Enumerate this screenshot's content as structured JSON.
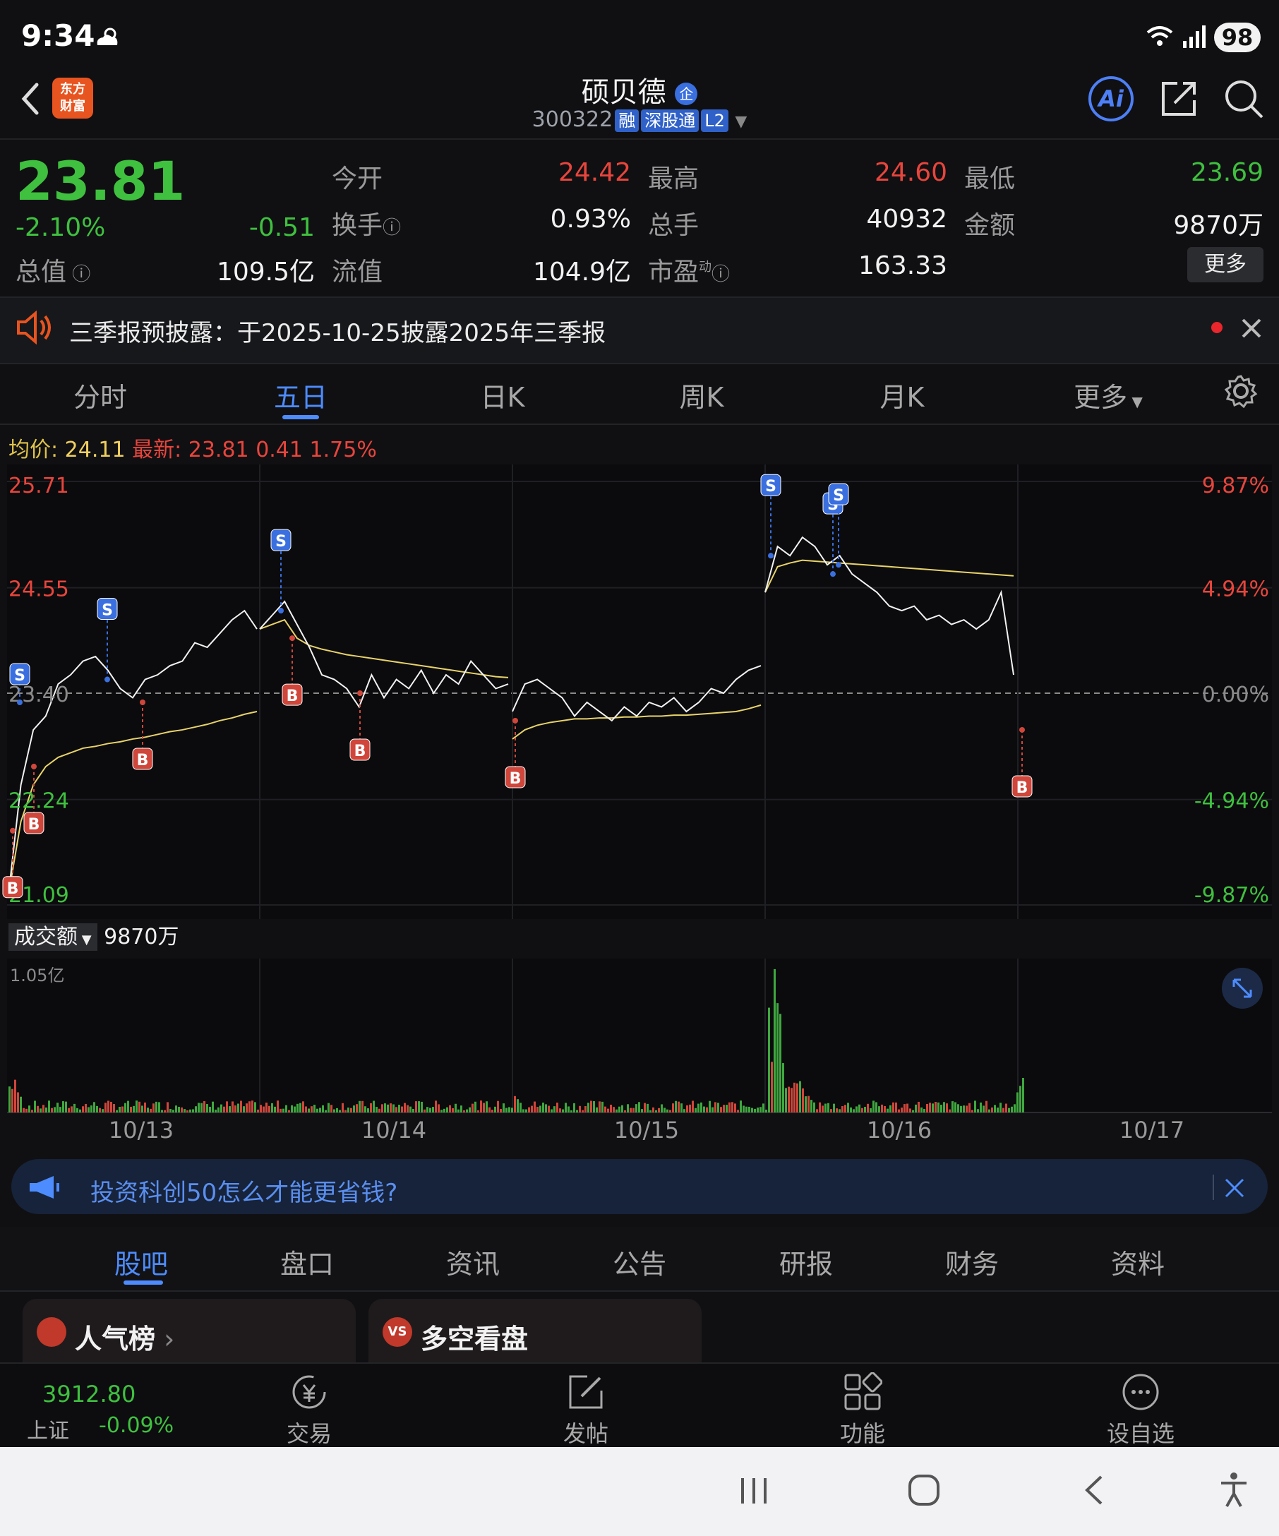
{
  "status_bar": {
    "time": "9:34",
    "battery": "98"
  },
  "header": {
    "title": "硕贝德",
    "title_badge": "企",
    "code": "300322",
    "tags": [
      "融",
      "深股通",
      "L2"
    ],
    "ai_label": "Ai",
    "logo_text": "东方财富"
  },
  "quote": {
    "price": "23.81",
    "change_pct": "-2.10%",
    "change": "-0.51",
    "open_label": "今开",
    "open": "24.42",
    "high_label": "最高",
    "high": "24.60",
    "low_label": "最低",
    "low": "23.69",
    "turnover_label": "换手",
    "turnover": "0.93%",
    "volume_label": "总手",
    "volume": "40932",
    "amount_label": "金额",
    "amount": "9870万",
    "mcap_label": "总值",
    "mcap": "109.5亿",
    "float_label": "流值",
    "float": "104.9亿",
    "pe_label": "市盈",
    "pe_sup": "动",
    "pe": "163.33",
    "more_label": "更多"
  },
  "notice": {
    "text": "三季报预披露：于2025-10-25披露2025年三季报"
  },
  "tabs": [
    "分时",
    "五日",
    "日K",
    "周K",
    "月K",
    "更多"
  ],
  "chart_header": {
    "avg_label": "均价:",
    "avg": "24.11",
    "latest_label": "最新:",
    "latest": "23.81",
    "diff": "0.41",
    "diff_pct": "1.75%"
  },
  "chart_data": {
    "type": "line",
    "x_labels": [
      "10/13",
      "10/14",
      "10/15",
      "10/16",
      "10/17"
    ],
    "y_left_ticks": [
      "25.71",
      "24.55",
      "23.40",
      "22.24",
      "21.09"
    ],
    "y_right_ticks": [
      "9.87%",
      "4.94%",
      "0.00%",
      "-4.94%",
      "-9.87%"
    ],
    "ylim": [
      21.09,
      25.71
    ],
    "prev_close": 23.4,
    "series": [
      {
        "day": "10/13",
        "price": [
          21.2,
          22.4,
          23.0,
          23.15,
          23.5,
          23.6,
          23.75,
          23.8,
          23.65,
          23.45,
          23.35,
          23.55,
          23.6,
          23.7,
          23.75,
          23.95,
          23.9,
          24.05,
          24.2,
          24.3,
          24.1
        ],
        "avg": [
          21.2,
          22.0,
          22.4,
          22.6,
          22.7,
          22.75,
          22.8,
          22.82,
          22.85,
          22.87,
          22.9,
          22.92,
          22.95,
          22.98,
          23.0,
          23.03,
          23.06,
          23.1,
          23.13,
          23.17,
          23.2
        ]
      },
      {
        "day": "10/14",
        "price": [
          24.1,
          24.25,
          24.4,
          24.15,
          23.9,
          23.6,
          23.55,
          23.45,
          23.25,
          23.6,
          23.35,
          23.55,
          23.45,
          23.65,
          23.4,
          23.6,
          23.5,
          23.75,
          23.6,
          23.45,
          23.5
        ],
        "avg": [
          24.1,
          24.15,
          24.2,
          24.0,
          23.92,
          23.88,
          23.85,
          23.82,
          23.8,
          23.78,
          23.76,
          23.74,
          23.72,
          23.7,
          23.68,
          23.66,
          23.64,
          23.62,
          23.6,
          23.58,
          23.57
        ]
      },
      {
        "day": "10/15",
        "price": [
          23.2,
          23.5,
          23.55,
          23.45,
          23.35,
          23.15,
          23.3,
          23.2,
          23.1,
          23.25,
          23.15,
          23.3,
          23.25,
          23.35,
          23.2,
          23.3,
          23.45,
          23.4,
          23.55,
          23.65,
          23.7
        ],
        "avg": [
          22.9,
          23.0,
          23.05,
          23.08,
          23.1,
          23.12,
          23.12,
          23.13,
          23.13,
          23.14,
          23.14,
          23.15,
          23.15,
          23.16,
          23.16,
          23.17,
          23.18,
          23.19,
          23.2,
          23.23,
          23.27
        ]
      },
      {
        "day": "10/16",
        "price": [
          24.5,
          25.0,
          24.9,
          25.1,
          25.0,
          24.8,
          24.9,
          24.7,
          24.6,
          24.5,
          24.35,
          24.3,
          24.35,
          24.2,
          24.25,
          24.15,
          24.2,
          24.1,
          24.2,
          24.5,
          23.6
        ],
        "avg": [
          24.5,
          24.78,
          24.82,
          24.85,
          24.84,
          24.83,
          24.82,
          24.81,
          24.8,
          24.79,
          24.78,
          24.77,
          24.76,
          24.75,
          24.74,
          24.73,
          24.72,
          24.71,
          24.7,
          24.69,
          24.68
        ]
      }
    ],
    "buy_sell_marks": [
      "S",
      "S",
      "S",
      "S",
      "S",
      "S",
      "B",
      "B",
      "B",
      "B",
      "B",
      "B",
      "B"
    ]
  },
  "volume": {
    "label": "成交额",
    "value": "9870万",
    "max_label": "1.05亿"
  },
  "ad": {
    "text": "投资科创50怎么才能更省钱?"
  },
  "bottom_tabs": [
    "股吧",
    "盘口",
    "资讯",
    "公告",
    "研报",
    "财务",
    "资料"
  ],
  "cards": {
    "popular": "人气榜",
    "bull_bear": "多空看盘"
  },
  "toolbar": {
    "index_value": "3912.80",
    "index_name": "上证",
    "index_change": "-0.09%",
    "trade": "交易",
    "post": "发帖",
    "functions": "功能",
    "watchlist": "设自选"
  }
}
